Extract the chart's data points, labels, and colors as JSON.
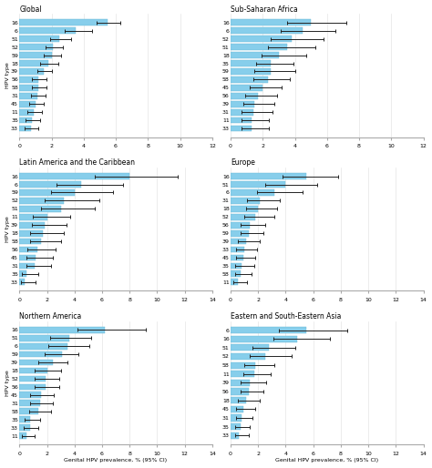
{
  "panels": [
    {
      "title": "Global",
      "xlim": [
        0,
        12
      ],
      "xticks": [
        0,
        2,
        4,
        6,
        8,
        10,
        12
      ],
      "types": [
        "16",
        "6",
        "51",
        "52",
        "59",
        "18",
        "39",
        "56",
        "58",
        "31",
        "45",
        "11",
        "35",
        "33"
      ],
      "values": [
        5.5,
        3.5,
        2.5,
        2.1,
        2.0,
        1.8,
        1.5,
        1.2,
        1.2,
        1.1,
        1.0,
        0.9,
        0.8,
        0.7
      ],
      "ci_low": [
        4.8,
        2.8,
        1.9,
        1.6,
        1.5,
        1.3,
        1.1,
        0.8,
        0.8,
        0.7,
        0.6,
        0.5,
        0.4,
        0.3
      ],
      "ci_high": [
        6.3,
        4.5,
        3.2,
        2.7,
        2.6,
        2.4,
        2.0,
        1.7,
        1.7,
        1.6,
        1.5,
        1.4,
        1.3,
        1.2
      ]
    },
    {
      "title": "Sub-Saharan Africa",
      "xlim": [
        0,
        12
      ],
      "xticks": [
        0,
        2,
        4,
        6,
        8,
        10,
        12
      ],
      "types": [
        "16",
        "6",
        "52",
        "51",
        "18",
        "35",
        "59",
        "58",
        "45",
        "56",
        "39",
        "31",
        "11",
        "33"
      ],
      "values": [
        5.0,
        4.5,
        3.8,
        3.5,
        3.0,
        2.5,
        2.5,
        2.3,
        2.0,
        1.7,
        1.5,
        1.4,
        1.3,
        1.3
      ],
      "ci_low": [
        3.5,
        3.1,
        2.5,
        2.3,
        1.9,
        1.6,
        1.5,
        1.4,
        1.2,
        0.9,
        0.8,
        0.7,
        0.7,
        0.7
      ],
      "ci_high": [
        7.2,
        6.5,
        5.8,
        5.3,
        4.7,
        3.9,
        4.0,
        3.7,
        3.2,
        2.9,
        2.7,
        2.6,
        2.4,
        2.4
      ]
    },
    {
      "title": "Latin America and the Caribbean",
      "xlim": [
        0,
        14
      ],
      "xticks": [
        0,
        2,
        4,
        6,
        8,
        10,
        12,
        14
      ],
      "types": [
        "16",
        "6",
        "59",
        "52",
        "51",
        "11",
        "39",
        "18",
        "58",
        "56",
        "45",
        "31",
        "35",
        "33"
      ],
      "values": [
        8.0,
        4.5,
        4.0,
        3.2,
        3.0,
        2.0,
        1.8,
        1.7,
        1.6,
        1.3,
        1.2,
        1.1,
        0.5,
        0.4
      ],
      "ci_low": [
        5.5,
        2.7,
        2.3,
        1.8,
        1.6,
        1.0,
        0.9,
        0.8,
        0.8,
        0.6,
        0.5,
        0.5,
        0.2,
        0.1
      ],
      "ci_high": [
        11.5,
        7.5,
        6.8,
        5.8,
        5.5,
        3.7,
        3.4,
        3.2,
        3.0,
        2.6,
        2.4,
        2.3,
        1.4,
        1.2
      ]
    },
    {
      "title": "Europe",
      "xlim": [
        0,
        14
      ],
      "xticks": [
        0,
        2,
        4,
        6,
        8,
        10,
        12,
        14
      ],
      "types": [
        "16",
        "51",
        "6",
        "31",
        "18",
        "52",
        "56",
        "59",
        "39",
        "33",
        "45",
        "35",
        "58",
        "11"
      ],
      "values": [
        5.5,
        4.0,
        3.2,
        2.1,
        2.0,
        1.8,
        1.4,
        1.3,
        1.1,
        1.0,
        0.9,
        0.8,
        0.7,
        0.5
      ],
      "ci_low": [
        3.8,
        2.5,
        1.9,
        1.2,
        1.1,
        1.0,
        0.7,
        0.7,
        0.5,
        0.4,
        0.4,
        0.3,
        0.3,
        0.2
      ],
      "ci_high": [
        7.8,
        6.3,
        5.2,
        3.6,
        3.4,
        3.2,
        2.5,
        2.4,
        2.1,
        1.9,
        1.8,
        1.7,
        1.5,
        1.2
      ]
    },
    {
      "title": "Northern America",
      "xlim": [
        0,
        14
      ],
      "xticks": [
        0,
        2,
        4,
        6,
        8,
        10,
        12,
        14
      ],
      "types": [
        "16",
        "51",
        "6",
        "59",
        "39",
        "18",
        "52",
        "56",
        "45",
        "31",
        "58",
        "35",
        "33",
        "11"
      ],
      "values": [
        6.2,
        3.6,
        3.5,
        3.1,
        2.4,
        2.0,
        1.9,
        1.9,
        1.6,
        1.5,
        1.4,
        0.8,
        0.8,
        0.5
      ],
      "ci_low": [
        4.2,
        2.2,
        2.1,
        1.8,
        1.4,
        1.1,
        1.1,
        1.1,
        0.8,
        0.8,
        0.7,
        0.4,
        0.3,
        0.2
      ],
      "ci_high": [
        9.2,
        5.2,
        5.1,
        4.3,
        3.5,
        3.0,
        2.9,
        2.9,
        2.5,
        2.4,
        2.3,
        1.5,
        1.4,
        1.1
      ]
    },
    {
      "title": "Eastern and South-Eastern Asia",
      "xlim": [
        0,
        14
      ],
      "xticks": [
        0,
        2,
        4,
        6,
        8,
        10,
        12,
        14
      ],
      "types": [
        "6",
        "16",
        "51",
        "52",
        "58",
        "11",
        "39",
        "56",
        "18",
        "45",
        "31",
        "35",
        "33"
      ],
      "values": [
        5.5,
        4.8,
        2.8,
        2.5,
        1.8,
        1.7,
        1.4,
        1.3,
        1.1,
        0.9,
        0.8,
        0.7,
        0.6
      ],
      "ci_low": [
        3.5,
        3.1,
        1.6,
        1.4,
        1.0,
        0.9,
        0.7,
        0.7,
        0.5,
        0.4,
        0.4,
        0.3,
        0.3
      ],
      "ci_high": [
        8.5,
        7.2,
        4.7,
        4.4,
        3.2,
        2.9,
        2.6,
        2.4,
        2.1,
        1.8,
        1.6,
        1.4,
        1.3
      ]
    }
  ],
  "bar_color": "#87CEEB",
  "bar_edge_color": "#6AB8D4",
  "error_color": "#222222",
  "xlabel": "Genital HPV prevalence, % (95% CI)",
  "ylabel": "HPV type",
  "figure_bg": "#ffffff",
  "axes_bg": "#ffffff"
}
